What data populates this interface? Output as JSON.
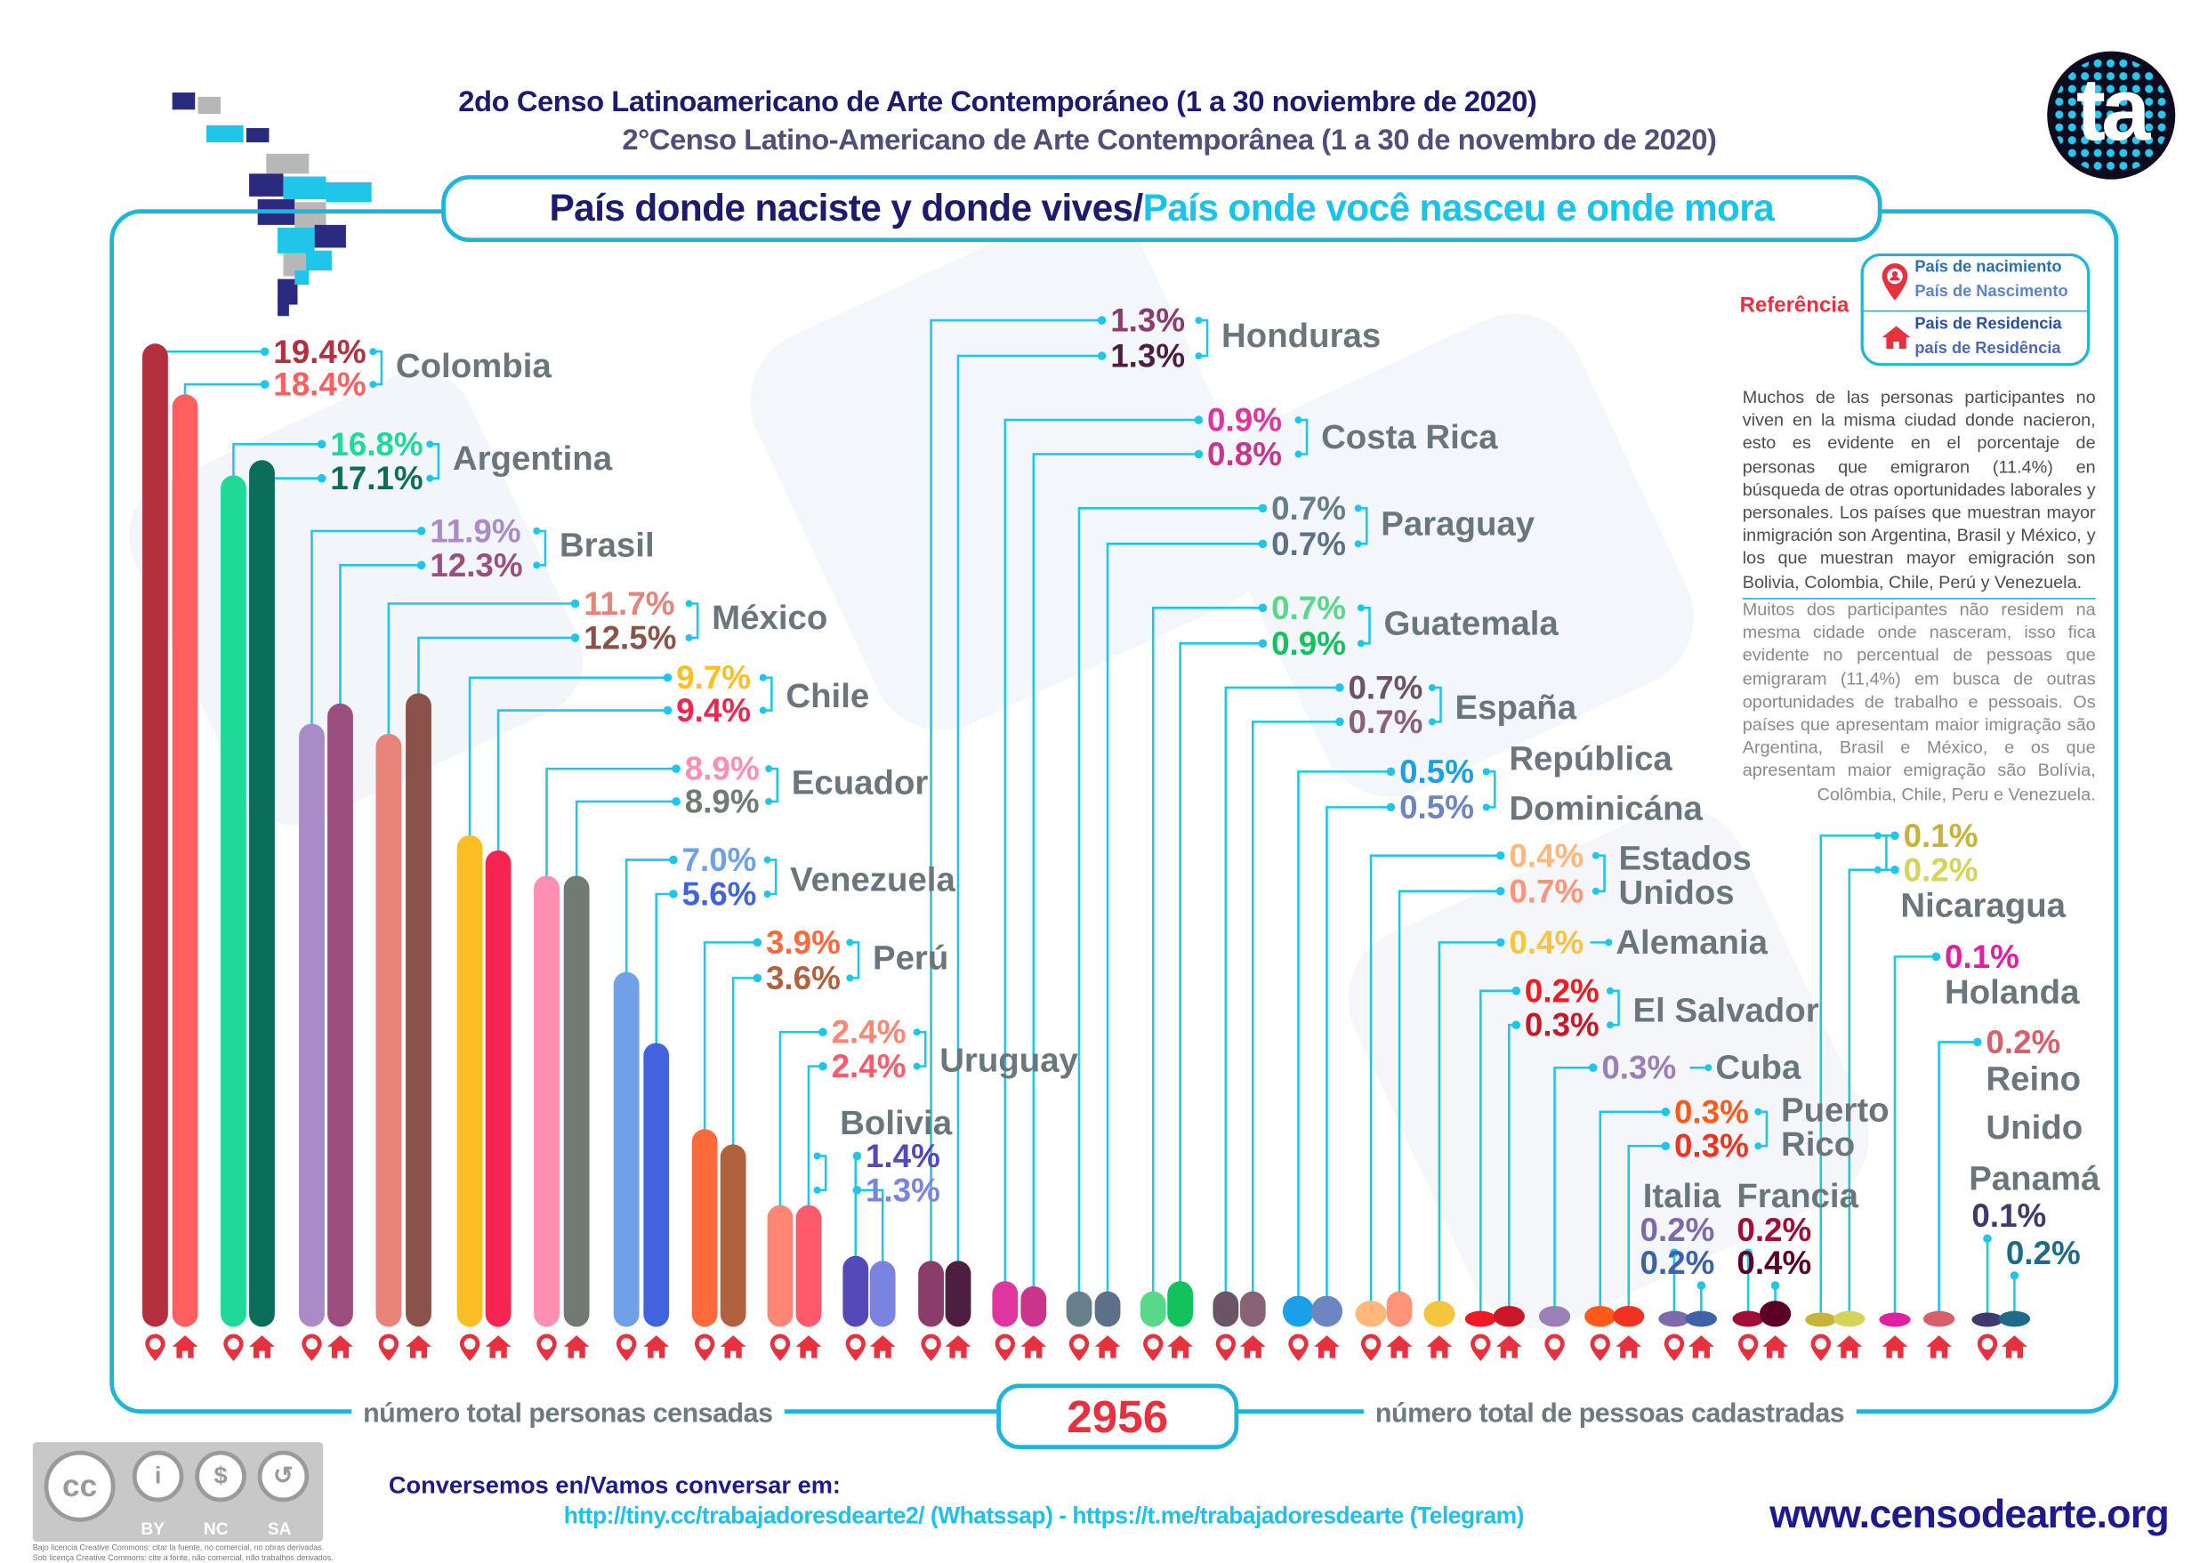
{
  "header": {
    "title_es": "2do Censo Latinoamericano de Arte Contemporáneo (1 a 30 noviembre de 2020)",
    "title_pt": "2°Censo Latino-Americano de Arte Contemporânea (1 a 30 de novembro de 2020)",
    "main_title_es": "País donde naciste y donde vives/",
    "main_title_pt": "País onde você nasceu e onde mora",
    "logo_text": "ta"
  },
  "legend": {
    "label": "Referência",
    "birth_es": "País de nacimiento",
    "birth_pt": "País de Nascimento",
    "residence_es": "Pais de Residencia",
    "residence_pt": "país de Residência",
    "icon_color": "#e8313f"
  },
  "notes": {
    "es": "Muchos de las personas participantes no viven en la misma ciudad donde nacieron, esto es evidente en el porcentaje de personas que emigraron (11.4%) en búsqueda de otras oportunidades laborales y personales. Los países que muestran mayor inmigración son Argentina, Brasil y México, y los que muestran mayor emigración son Bolivia, Colombia, Chile, Perú y Venezuela.",
    "pt": "Muitos dos participantes não residem na mesma cidade onde nasceram, isso fica evidente no percentual de pessoas que emigraram (11,4%) em busca de outras oportunidades de trabalho e pessoais. Os países que apresentam maior imigração são Argentina, Brasil e México, e os que apresentam maior emigração são Bolívia, Colômbia, Chile, Peru e Venezuela."
  },
  "chart_data": {
    "type": "bar",
    "unit": "%",
    "categories": [
      "Colombia",
      "Argentina",
      "Brasil",
      "México",
      "Chile",
      "Ecuador",
      "Venezuela",
      "Perú",
      "Uruguay",
      "Bolivia",
      "Honduras",
      "Costa Rica",
      "Paraguay",
      "Guatemala",
      "España",
      "República Dominicána",
      "Estados Unidos",
      "Alemania",
      "El Salvador",
      "Cuba",
      "Puerto Rico",
      "Italia",
      "Francia",
      "Nicaragua",
      "Holanda",
      "Reino Unido",
      "Panamá"
    ],
    "series": [
      {
        "name": "País de nacimiento",
        "values": [
          19.4,
          16.8,
          11.9,
          11.7,
          9.7,
          8.9,
          7.0,
          3.9,
          2.4,
          1.4,
          1.3,
          0.9,
          0.7,
          0.7,
          0.7,
          0.5,
          0.4,
          null,
          0.2,
          0.3,
          0.3,
          0.2,
          0.2,
          0.1,
          null,
          null,
          0.1
        ]
      },
      {
        "name": "Pais de Residencia",
        "values": [
          18.4,
          17.1,
          12.3,
          12.5,
          9.4,
          8.9,
          5.6,
          3.6,
          2.4,
          1.3,
          1.3,
          0.8,
          0.7,
          0.9,
          0.7,
          0.5,
          0.7,
          0.4,
          0.3,
          null,
          0.3,
          0.2,
          0.4,
          0.2,
          0.1,
          0.2,
          0.2
        ]
      }
    ],
    "colors": [
      [
        "#b5303f",
        "#ff5f5f"
      ],
      [
        "#1ed997",
        "#0b6e5a"
      ],
      [
        "#a98bc8",
        "#9b4f7f"
      ],
      [
        "#e8837a",
        "#8a5248"
      ],
      [
        "#fbbf25",
        "#f5254f"
      ],
      [
        "#ff8fb2",
        "#6f7b73"
      ],
      [
        "#6fa0e8",
        "#4163e0"
      ],
      [
        "#ff6a3d",
        "#b1613e"
      ],
      [
        "#ff8575",
        "#ff5a6a"
      ],
      [
        "#5548b8",
        "#7b83e0"
      ],
      [
        "#8a3c6a",
        "#4e1e40"
      ],
      [
        "#e0359e",
        "#c8358a"
      ],
      [
        "#677f8a",
        "#5d7088"
      ],
      [
        "#58d98a",
        "#12c25c"
      ],
      [
        "#6b5463",
        "#8a6275"
      ],
      [
        "#1a9fe8",
        "#6d85c0"
      ],
      [
        "#ffb87a",
        "#ff9478"
      ],
      [
        null,
        "#f5c540"
      ],
      [
        "#f01a22",
        "#c9182a"
      ],
      [
        "#9b7fb5",
        null
      ],
      [
        "#ff5a1a",
        "#f03220"
      ],
      [
        "#7c6aac",
        "#3d62a8"
      ],
      [
        "#a00d35",
        "#5d0025"
      ],
      [
        "#c8b33a",
        "#d4d35a"
      ],
      [
        null,
        "#e020a0"
      ],
      [
        null,
        "#d8606a"
      ],
      [
        "#3e3a6e",
        "#1e6a8a"
      ]
    ],
    "connector_color": "#1fc6ea",
    "label_color": "#6b767c",
    "legend_placement": "top-right"
  },
  "total": {
    "label_es": "número total personas censadas",
    "value": "2956",
    "label_pt": "número total de pessoas cadastradas"
  },
  "footer": {
    "license_badge": [
      "BY",
      "NC",
      "SA"
    ],
    "license_es": "Bajo licencia Creative Commons: citar la fuente, no comercial, no obras derivadas.",
    "license_pt": "Sob licença Creative Commons: cite a fonte, não comercial, não trabalhos derivados.",
    "contact_label": "Conversemos en/Vamos conversar em:",
    "links": "http://tiny.cc/trabajadoresdearte2/ (Whatssap) - https://t.me/trabajadoresdearte (Telegram)",
    "website": "www.censodearte.org"
  }
}
